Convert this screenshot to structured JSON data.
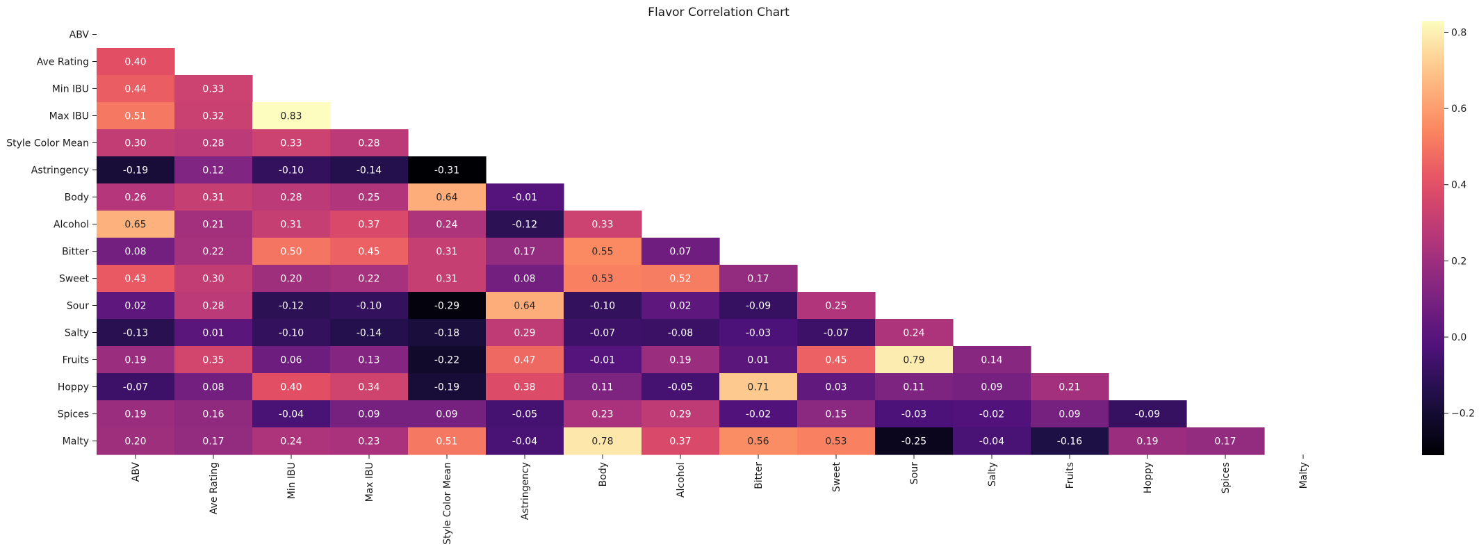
{
  "chart_data": {
    "type": "heatmap",
    "title": "Flavor Correlation Chart",
    "labels": [
      "ABV",
      "Ave Rating",
      "Min IBU",
      "Max IBU",
      "Style Color Mean",
      "Astringency",
      "Body",
      "Alcohol",
      "Bitter",
      "Sweet",
      "Sour",
      "Salty",
      "Fruits",
      "Hoppy",
      "Spices",
      "Malty"
    ],
    "mask": "upper-triangle-including-diagonal",
    "rows": [
      [],
      [
        0.4
      ],
      [
        0.44,
        0.33
      ],
      [
        0.51,
        0.32,
        0.83
      ],
      [
        0.3,
        0.28,
        0.33,
        0.28
      ],
      [
        -0.19,
        0.12,
        -0.1,
        -0.14,
        -0.31
      ],
      [
        0.26,
        0.31,
        0.28,
        0.25,
        0.64,
        -0.01
      ],
      [
        0.65,
        0.21,
        0.31,
        0.37,
        0.24,
        -0.12,
        0.33
      ],
      [
        0.08,
        0.22,
        0.5,
        0.45,
        0.31,
        0.17,
        0.55,
        0.07
      ],
      [
        0.43,
        0.3,
        0.2,
        0.22,
        0.31,
        0.08,
        0.53,
        0.52,
        0.17
      ],
      [
        0.02,
        0.28,
        -0.12,
        -0.1,
        -0.29,
        0.64,
        -0.1,
        0.02,
        -0.09,
        0.25
      ],
      [
        -0.13,
        0.01,
        -0.1,
        -0.14,
        -0.18,
        0.29,
        -0.07,
        -0.08,
        -0.03,
        -0.07,
        0.24
      ],
      [
        0.19,
        0.35,
        0.06,
        0.13,
        -0.22,
        0.47,
        -0.01,
        0.19,
        0.01,
        0.45,
        0.79,
        0.14
      ],
      [
        -0.07,
        0.08,
        0.4,
        0.34,
        -0.19,
        0.38,
        0.11,
        -0.05,
        0.71,
        0.03,
        0.11,
        0.09,
        0.21
      ],
      [
        0.19,
        0.16,
        -0.04,
        0.09,
        0.09,
        -0.05,
        0.23,
        0.29,
        -0.02,
        0.15,
        -0.03,
        -0.02,
        0.09,
        -0.09
      ],
      [
        0.2,
        0.17,
        0.24,
        0.23,
        0.51,
        -0.04,
        0.78,
        0.37,
        0.56,
        0.53,
        -0.25,
        -0.04,
        -0.16,
        0.19,
        0.17
      ]
    ],
    "value_format": "2 decimals",
    "colormap": "magma",
    "vmin": -0.31,
    "vmax": 0.83,
    "colorbar": {
      "ticks": [
        0.8,
        0.6,
        0.4,
        0.2,
        0.0,
        -0.2
      ],
      "tick_labels": [
        "0.8",
        "0.6",
        "0.4",
        "0.2",
        "0.0",
        "−0.2"
      ],
      "placement": "right"
    },
    "grid": false
  }
}
